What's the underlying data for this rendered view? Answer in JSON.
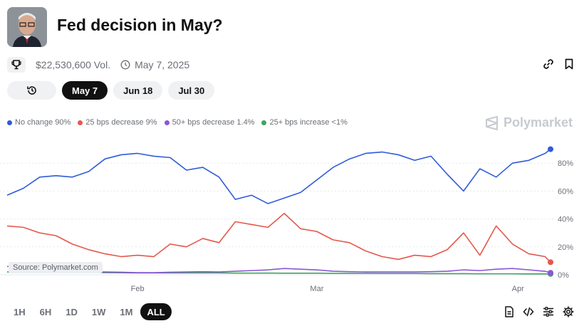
{
  "header": {
    "title": "Fed decision in May?"
  },
  "meta": {
    "volume": "$22,530,600 Vol.",
    "date": "May 7, 2025"
  },
  "date_tabs": [
    {
      "label": "May 7",
      "active": true
    },
    {
      "label": "Jun 18",
      "active": false
    },
    {
      "label": "Jul 30",
      "active": false
    }
  ],
  "brand": {
    "name": "Polymarket"
  },
  "legend": [
    {
      "label": "No change 90%",
      "color": "#2f5bd8"
    },
    {
      "label": "25 bps decrease 9%",
      "color": "#e5584c"
    },
    {
      "label": "50+ bps decrease 1.4%",
      "color": "#8b55d6"
    },
    {
      "label": "25+ bps increase <1%",
      "color": "#3ea55d"
    }
  ],
  "source_label": "Source: Polymarket.com",
  "time_ranges": [
    {
      "label": "1H",
      "active": false
    },
    {
      "label": "6H",
      "active": false
    },
    {
      "label": "1D",
      "active": false
    },
    {
      "label": "1W",
      "active": false
    },
    {
      "label": "1M",
      "active": false
    },
    {
      "label": "ALL",
      "active": true
    }
  ],
  "chart_data": {
    "type": "line",
    "x_tick_labels": [
      "Feb",
      "Mar",
      "Apr"
    ],
    "y_tick_labels": [
      "80%",
      "60%",
      "40%",
      "20%",
      "0%"
    ],
    "ylim": [
      0,
      100
    ],
    "grid": true,
    "x": [
      0,
      3,
      6,
      9,
      12,
      15,
      18,
      21,
      24,
      27,
      30,
      33,
      36,
      39,
      42,
      45,
      48,
      51,
      54,
      57,
      60,
      63,
      66,
      69,
      72,
      75,
      78,
      81,
      84,
      87,
      90,
      93,
      96,
      99,
      100
    ],
    "series": [
      {
        "name": "No change",
        "color": "#2f5bd8",
        "values": [
          57,
          62,
          70,
          71,
          70,
          74,
          83,
          86,
          87,
          85,
          84,
          75,
          77,
          70,
          54,
          57,
          51,
          55,
          59,
          68,
          77,
          83,
          87,
          88,
          86,
          82,
          85,
          72,
          60,
          76,
          70,
          80,
          82,
          87,
          90
        ]
      },
      {
        "name": "25 bps decrease",
        "color": "#e5584c",
        "values": [
          35,
          34,
          30,
          28,
          22,
          18,
          15,
          13,
          14,
          13,
          22,
          20,
          26,
          23,
          38,
          36,
          34,
          44,
          33,
          31,
          25,
          23,
          17,
          13,
          11,
          14,
          13,
          18,
          30,
          14,
          35,
          22,
          15,
          13,
          9
        ]
      },
      {
        "name": "50+ bps decrease",
        "color": "#8b55d6",
        "values": [
          6,
          5,
          3,
          2.5,
          2.5,
          2,
          2,
          1.8,
          1.5,
          1.5,
          1.8,
          2,
          2.2,
          2,
          2.5,
          3,
          3.5,
          4.5,
          4,
          3.5,
          2.5,
          2.2,
          2,
          2,
          2,
          2,
          2.2,
          2.5,
          3.5,
          3,
          4,
          4.5,
          3.5,
          2.5,
          1.4
        ]
      },
      {
        "name": "25+ bps increase",
        "color": "#3ea55d",
        "values": [
          2,
          2,
          1.8,
          1.6,
          1.5,
          1.5,
          1.5,
          1.4,
          1.3,
          1.3,
          1.3,
          1.3,
          1.3,
          1.3,
          1.2,
          1.2,
          1.2,
          1.1,
          1.1,
          1.1,
          1,
          1,
          1,
          0.9,
          0.9,
          0.9,
          0.8,
          0.8,
          0.8,
          0.7,
          0.7,
          0.7,
          0.6,
          0.6,
          0.6
        ]
      }
    ]
  }
}
